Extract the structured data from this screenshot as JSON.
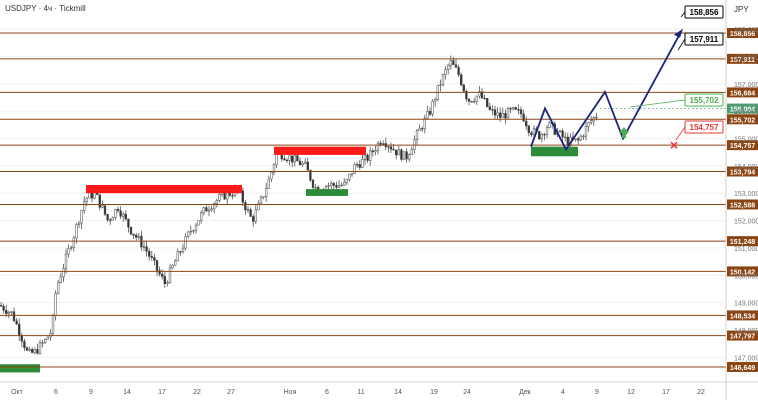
{
  "header": {
    "title": "USDJPY · 4ч · Tickmill",
    "currency": "JPY"
  },
  "chart_data": {
    "type": "candlestick",
    "title": "USDJPY · 4ч · Tickmill",
    "ylim": [
      146.1,
      159.55
    ],
    "x_ticks": [
      "Окт",
      "6",
      "9",
      "14",
      "17",
      "22",
      "27",
      "Ноя",
      "6",
      "11",
      "14",
      "19",
      "24",
      "Дек",
      "4",
      "9",
      "12",
      "17",
      "22"
    ],
    "y_ticks": [
      "159,000",
      "158,000",
      "157,000",
      "156,000",
      "155,000",
      "154,000",
      "153,000",
      "152,000",
      "151,000",
      "150,000",
      "149,000",
      "148,000",
      "147,000"
    ],
    "levels": [
      158.856,
      157.911,
      156.684,
      155.702,
      154.757,
      153.794,
      152.588,
      151.248,
      150.142,
      148.534,
      147.797,
      146.649
    ],
    "level_labels": [
      "158,856",
      "157,911",
      "156,684",
      "155,702",
      "154,757",
      "153,794",
      "152,588",
      "151,248",
      "150,142",
      "148,534",
      "147,797",
      "146,649"
    ],
    "current_price": {
      "value": 156.094,
      "label": "156,094"
    },
    "resistance_zones": [
      {
        "from": 153.0,
        "to": 153.3
      },
      {
        "from": 154.4,
        "to": 154.7
      }
    ],
    "support_zones": [
      {
        "from": 146.45,
        "to": 146.75
      },
      {
        "from": 152.9,
        "to": 153.15
      },
      {
        "from": 154.35,
        "to": 154.7
      }
    ],
    "forecast_path": [
      154.7,
      156.1,
      154.6,
      156.7,
      155.0,
      158.9
    ],
    "target_labels": [
      "158,856",
      "157,911"
    ],
    "buy_label": "155,702",
    "stop_label": "154,757",
    "colors": {
      "level": "#8b4513",
      "resistance": "#ff1a1a",
      "support": "#2e8b3a",
      "forecast": "#1a237e",
      "bull": "#26a69a",
      "bear": "#ef5350",
      "target_border": "#000000",
      "buy": "#4caf50",
      "stop": "#e53935",
      "current": "#4f9a73"
    }
  }
}
